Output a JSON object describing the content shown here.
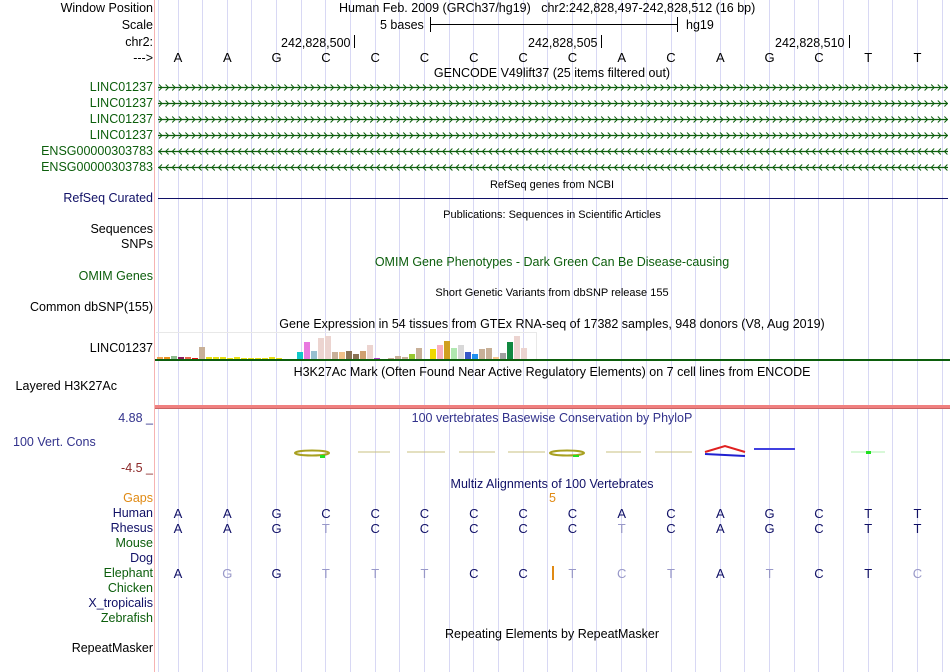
{
  "header": {
    "window_position_label": "Window Position",
    "scale_label": "Scale",
    "chrom_label": "chr2:",
    "strand_label": "--->",
    "assembly_title": "Human Feb. 2009 (GRCh37/hg19)",
    "position": "chr2:242,828,497-242,828,512 (16 bp)",
    "scale_text": "5 bases",
    "scale_db": "hg19",
    "ruler_ticks": [
      "242,828,500",
      "242,828,505",
      "242,828,510"
    ],
    "bases": [
      "A",
      "A",
      "G",
      "C",
      "C",
      "C",
      "C",
      "C",
      "C",
      "A",
      "C",
      "A",
      "G",
      "C",
      "T",
      "T"
    ]
  },
  "tracks": {
    "gencode": {
      "title": "GENCODE V49lift37 (25 items filtered out)",
      "items": [
        {
          "label": "LINC01237",
          "strand": "+"
        },
        {
          "label": "LINC01237",
          "strand": "+"
        },
        {
          "label": "LINC01237",
          "strand": "+"
        },
        {
          "label": "LINC01237",
          "strand": "+"
        },
        {
          "label": "ENSG00000303783",
          "strand": "-"
        },
        {
          "label": "ENSG00000303783",
          "strand": "-"
        }
      ]
    },
    "refseq": {
      "title": "RefSeq genes from NCBI",
      "label": "RefSeq Curated"
    },
    "publications": {
      "title": "Publications: Sequences in Scientific Articles",
      "labels": [
        "Sequences",
        "SNPs"
      ]
    },
    "omim": {
      "title": "OMIM Gene Phenotypes - Dark Green Can Be Disease-causing",
      "label": "OMIM Genes"
    },
    "dbsnp": {
      "title": "Short Genetic Variants from dbSNP release 155",
      "label": "Common dbSNP(155)"
    },
    "gtex": {
      "title": "Gene Expression in 54 tissues from GTEx RNA-seq of 17382 samples, 948 donors (V8, Aug 2019)",
      "label": "LINC01237",
      "bars": [
        {
          "v": 0.12,
          "c": "#f0a050"
        },
        {
          "v": 0.15,
          "c": "#e8901a"
        },
        {
          "v": 0.2,
          "c": "#8fbc8f"
        },
        {
          "v": 0.15,
          "c": "#8b1a5a"
        },
        {
          "v": 0.15,
          "c": "#e8684a"
        },
        {
          "v": 0.08,
          "c": "#e01010"
        },
        {
          "v": 0.6,
          "c": "#c8b098"
        },
        {
          "v": 0.12,
          "c": "#e8e010"
        },
        {
          "v": 0.12,
          "c": "#e8e010"
        },
        {
          "v": 0.12,
          "c": "#e8e010"
        },
        {
          "v": 0.08,
          "c": "#e8e010"
        },
        {
          "v": 0.12,
          "c": "#e8e010"
        },
        {
          "v": 0.08,
          "c": "#e8e010"
        },
        {
          "v": 0.08,
          "c": "#e8e010"
        },
        {
          "v": 0.08,
          "c": "#e8e010"
        },
        {
          "v": 0.08,
          "c": "#e8e010"
        },
        {
          "v": 0.15,
          "c": "#e8e010"
        },
        {
          "v": 0.08,
          "c": "#e8e010"
        },
        {
          "v": 0.03,
          "c": "#e8e010"
        },
        {
          "v": 0.03,
          "c": "#e8e010"
        },
        {
          "v": 0.38,
          "c": "#10c8c8"
        },
        {
          "v": 0.82,
          "c": "#e878e0"
        },
        {
          "v": 0.4,
          "c": "#98c0d0"
        },
        {
          "v": 1.0,
          "c": "#ecd4d0"
        },
        {
          "v": 1.1,
          "c": "#ecd4d0"
        },
        {
          "v": 0.35,
          "c": "#c8b098"
        },
        {
          "v": 0.35,
          "c": "#f0c088"
        },
        {
          "v": 0.4,
          "c": "#8b7355"
        },
        {
          "v": 0.25,
          "c": "#8b7355"
        },
        {
          "v": 0.4,
          "c": "#d0a070"
        },
        {
          "v": 0.7,
          "c": "#ecd4d0"
        },
        {
          "v": 0.08,
          "c": "#b040c8"
        },
        {
          "v": 0.0,
          "c": "#ffffff"
        },
        {
          "v": 0.08,
          "c": "#c8b098"
        },
        {
          "v": 0.2,
          "c": "#c8b098"
        },
        {
          "v": 0.12,
          "c": "#c8b098"
        },
        {
          "v": 0.28,
          "c": "#98c830"
        },
        {
          "v": 0.55,
          "c": "#c8b098"
        },
        {
          "v": 0.0,
          "c": "#ffffff"
        },
        {
          "v": 0.5,
          "c": "#f0d800"
        },
        {
          "v": 0.7,
          "c": "#f8b0c0"
        },
        {
          "v": 0.85,
          "c": "#d0a020"
        },
        {
          "v": 0.55,
          "c": "#b0e8b0"
        },
        {
          "v": 0.7,
          "c": "#d8d8d8"
        },
        {
          "v": 0.35,
          "c": "#3858c8"
        },
        {
          "v": 0.28,
          "c": "#2090f0"
        },
        {
          "v": 0.5,
          "c": "#c8b098"
        },
        {
          "v": 0.55,
          "c": "#c8b098"
        },
        {
          "v": 0.15,
          "c": "#f8c890"
        },
        {
          "v": 0.3,
          "c": "#a0a0a0"
        },
        {
          "v": 0.8,
          "c": "#108840"
        },
        {
          "v": 1.1,
          "c": "#ecd4d0"
        },
        {
          "v": 0.55,
          "c": "#ecd4d0"
        },
        {
          "v": 0.06,
          "c": "#e010e0"
        }
      ]
    },
    "h3k27ac": {
      "title": "H3K27Ac Mark (Often Found Near Active Regulatory Elements) on 7 cell lines from ENCODE",
      "label": "Layered H3K27Ac"
    },
    "phylop": {
      "title": "100 vertebrates Basewise Conservation by PhyloP",
      "label": "100 Vert. Cons",
      "max": "4.88 _",
      "min": "-4.5 _"
    },
    "multiz": {
      "title": "Multiz Alignments of 100 Vertebrates",
      "gaps_label": "Gaps",
      "gap_count": "5",
      "species": [
        {
          "name": "Human",
          "color": "navy",
          "bases": [
            "A",
            "A",
            "G",
            "C",
            "C",
            "C",
            "C",
            "C",
            "C",
            "A",
            "C",
            "A",
            "G",
            "C",
            "T",
            "T"
          ],
          "faded": []
        },
        {
          "name": "Rhesus",
          "color": "navy",
          "bases": [
            "A",
            "A",
            "G",
            "T",
            "C",
            "C",
            "C",
            "C",
            "C",
            "T",
            "C",
            "A",
            "G",
            "C",
            "T",
            "T"
          ],
          "faded": [
            3,
            9
          ]
        },
        {
          "name": "Mouse",
          "color": "green",
          "bases": [],
          "faded": []
        },
        {
          "name": "Dog",
          "color": "navy",
          "bases": [],
          "faded": []
        },
        {
          "name": "Elephant",
          "color": "green",
          "bases": [
            "A",
            "G",
            "G",
            "T",
            "T",
            "T",
            "C",
            "C",
            "T",
            "C",
            "T",
            "A",
            "T",
            "C",
            "T",
            "C"
          ],
          "faded": [
            1,
            3,
            4,
            5,
            8,
            9,
            10,
            12,
            15
          ]
        },
        {
          "name": "Chicken",
          "color": "green",
          "bases": [],
          "faded": []
        },
        {
          "name": "X_tropicalis",
          "color": "navy",
          "bases": [],
          "faded": []
        },
        {
          "name": "Zebrafish",
          "color": "green",
          "bases": [],
          "faded": []
        }
      ]
    },
    "repeatmasker": {
      "title": "Repeating Elements by RepeatMasker",
      "label": "RepeatMasker"
    }
  }
}
